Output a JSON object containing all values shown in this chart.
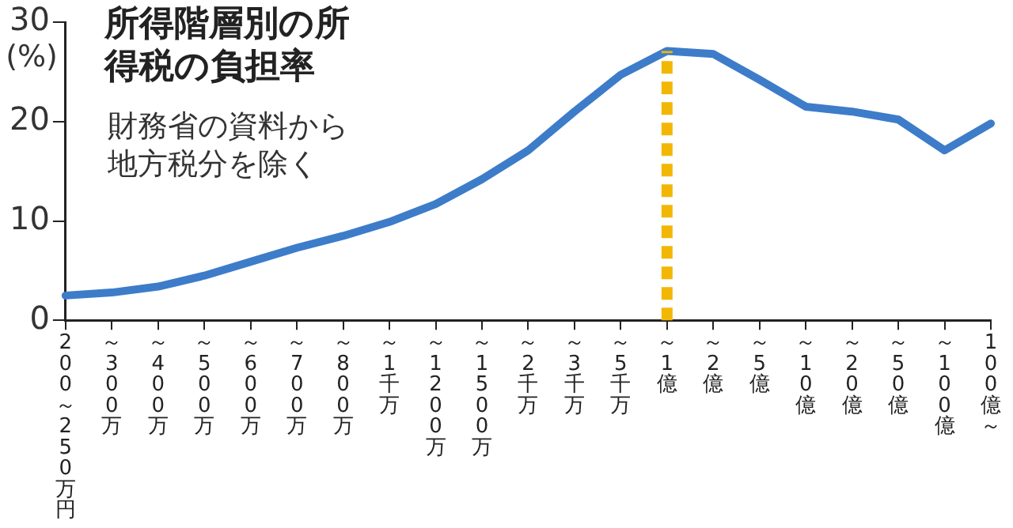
{
  "chart_data": {
    "type": "line",
    "title": "所得階層別の所得税の負担率",
    "ylabel": "(%)",
    "annotations": [
      "財務省の資料から地方税分を除く"
    ],
    "categories": [
      "200～250万円",
      "～300万",
      "～400万",
      "～500万",
      "～600万",
      "～700万",
      "～800万",
      "～1千万",
      "～1200万",
      "～1500万",
      "～2千万",
      "～3千万",
      "～5千万",
      "～1億",
      "～2億",
      "～5億",
      "～10億",
      "～20億",
      "～50億",
      "～100億",
      "100億～"
    ],
    "series": [
      {
        "color": "#3d7cc9",
        "values": [
          2.5,
          2.8,
          3.4,
          4.5,
          5.9,
          7.3,
          8.5,
          9.9,
          11.7,
          14.2,
          17.1,
          21.0,
          24.7,
          27.1,
          26.8,
          24.2,
          21.5,
          21.0,
          20.2,
          17.1,
          19.8
        ]
      }
    ],
    "ylim": [
      0,
      30
    ],
    "yticks": [
      0,
      10,
      20,
      30
    ],
    "grid": false,
    "legend": false,
    "marker": "none",
    "line_style": "solid",
    "ref_lines": [
      {
        "axis": "x",
        "value": "～1億",
        "color": "#f2b705",
        "line_style": "dashed"
      }
    ]
  }
}
